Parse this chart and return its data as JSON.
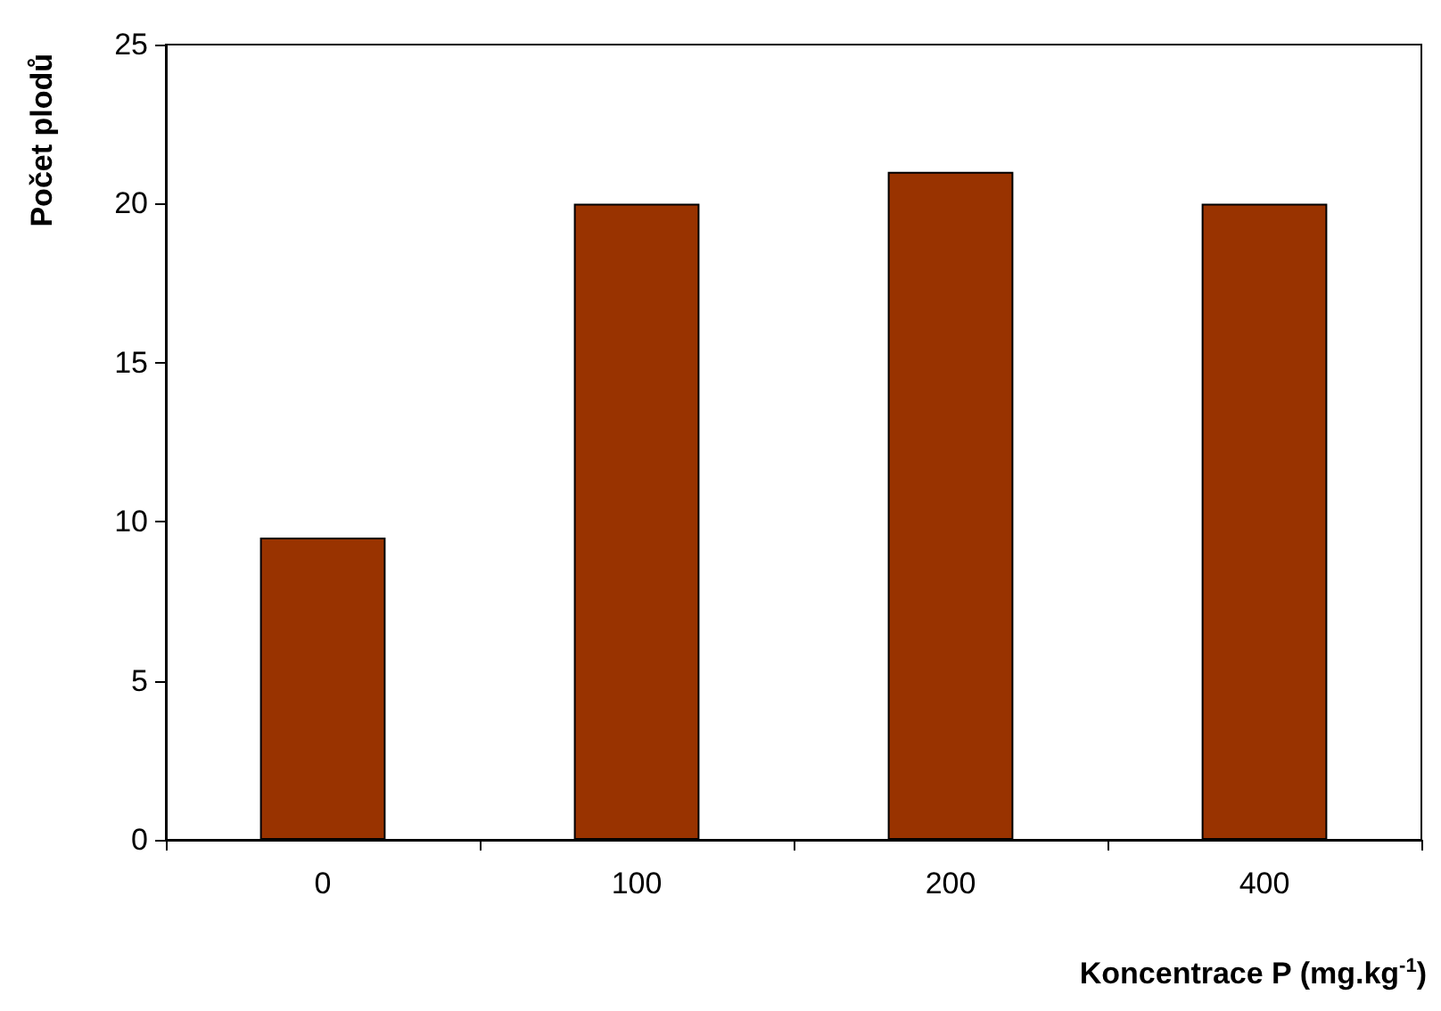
{
  "chart_data": {
    "type": "bar",
    "xlabel": "Koncentrace P (mg.kg$^{-1}$)",
    "ylabel": "Počet plodů",
    "categories": [
      "0",
      "100",
      "200",
      "400"
    ],
    "values": [
      9.5,
      20,
      21,
      20
    ],
    "color": "#993300",
    "ylim": [
      0,
      25
    ],
    "yticks": [
      0,
      5,
      10,
      15,
      20,
      25
    ],
    "grid": false
  }
}
